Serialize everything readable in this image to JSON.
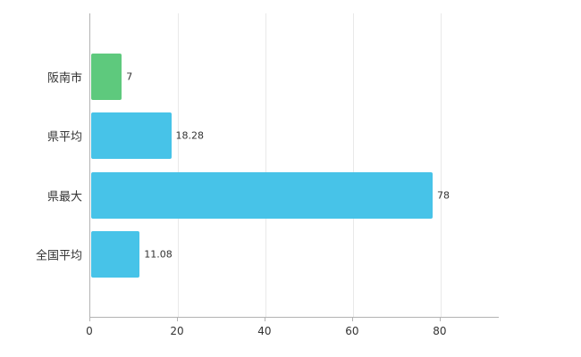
{
  "chart_data": {
    "type": "bar",
    "orientation": "horizontal",
    "title": "",
    "xlabel": "",
    "ylabel": "",
    "categories": [
      "阪南市",
      "県平均",
      "県最大",
      "全国平均"
    ],
    "values": [
      7,
      18.28,
      78,
      11.08
    ],
    "value_labels": [
      "7",
      "18.28",
      "78",
      "11.08"
    ],
    "bar_colors": [
      "#5ec97d",
      "#47c3e8",
      "#47c3e8",
      "#47c3e8"
    ],
    "xlim": [
      0,
      93.3
    ],
    "xticks": [
      0,
      20,
      40,
      60,
      80
    ],
    "xtick_labels": [
      "0",
      "20",
      "40",
      "60",
      "80"
    ],
    "grid": "vertical-gridlines",
    "legend": "none",
    "colors": {
      "axis": "#b3b3b3",
      "gridline": "#e9e9e9",
      "text": "#333333",
      "background": "#ffffff"
    }
  }
}
